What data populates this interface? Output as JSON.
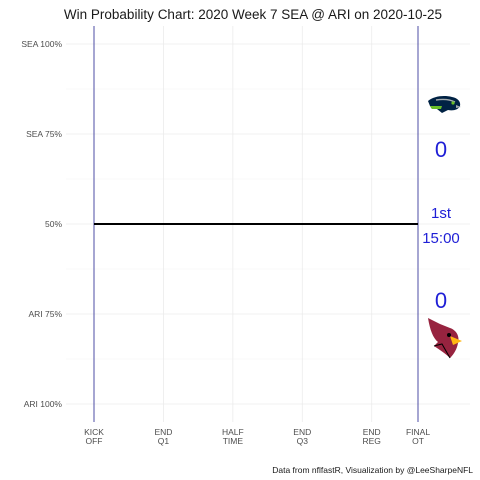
{
  "chart_data": {
    "type": "line",
    "title": "Win Probability Chart: 2020 Week 7 SEA @ ARI on 2020-10-25",
    "y_ticks": [
      {
        "label": "SEA 100%",
        "value": 1.0
      },
      {
        "label": "SEA 75%",
        "value": 0.75
      },
      {
        "label": "50%",
        "value": 0.5
      },
      {
        "label": "ARI 75%",
        "value": 0.25
      },
      {
        "label": "ARI 100%",
        "value": 0.0
      }
    ],
    "x_ticks": [
      {
        "line1": "KICK",
        "line2": "OFF",
        "value": 0
      },
      {
        "line1": "END",
        "line2": "Q1",
        "value": 15
      },
      {
        "line1": "HALF",
        "line2": "TIME",
        "value": 30
      },
      {
        "line1": "END",
        "line2": "Q3",
        "value": 45
      },
      {
        "line1": "END",
        "line2": "REG",
        "value": 60
      },
      {
        "line1": "FINAL",
        "line2": "OT",
        "value": 70
      }
    ],
    "xlim": [
      0,
      70
    ],
    "ylim": [
      0,
      1
    ],
    "grid": true,
    "series": [
      {
        "x": [
          0,
          70
        ],
        "y": [
          0.5,
          0.5
        ],
        "color": "#000000"
      }
    ],
    "reference_lines_x": [
      0,
      70
    ],
    "reference_line_color": "#3b3b9e",
    "away_team": {
      "abbr": "SEA",
      "score": "0",
      "logo": "seahawks-logo-icon"
    },
    "home_team": {
      "abbr": "ARI",
      "score": "0",
      "logo": "cardinals-logo-icon"
    },
    "clock": {
      "quarter": "1st",
      "time": "15:00"
    },
    "score_color": "#1f1fd6",
    "caption": "Data from nflfastR, Visualization by @LeeSharpeNFL"
  }
}
